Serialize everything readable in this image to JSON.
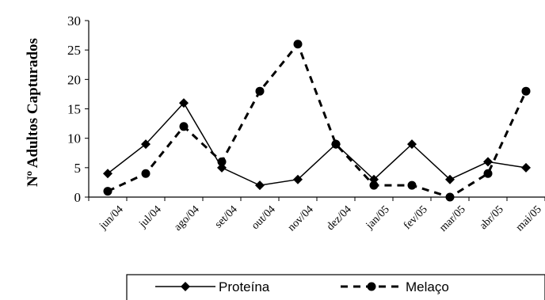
{
  "chart_data": {
    "type": "line",
    "title": "",
    "xlabel": "",
    "ylabel": "Nº Adultos Capturados",
    "ylim": [
      0,
      30
    ],
    "yticks": [
      "0",
      "5",
      "10",
      "15",
      "20",
      "25",
      "30"
    ],
    "categories": [
      "jun/04",
      "jul/04",
      "ago/04",
      "set/04",
      "out/04",
      "nov/04",
      "dez/04",
      "jan/05",
      "fev/05",
      "mar/05",
      "abr/05",
      "mai/05"
    ],
    "series": [
      {
        "name": "Proteína",
        "line_style": "solid",
        "marker": "diamond",
        "color": "#000000",
        "values": [
          4,
          9,
          16,
          5,
          2,
          3,
          9,
          3,
          9,
          3,
          6,
          5
        ]
      },
      {
        "name": "Melaço",
        "line_style": "dashed",
        "marker": "circle",
        "color": "#000000",
        "values": [
          1,
          4,
          12,
          6,
          18,
          26,
          9,
          2,
          2,
          0,
          4,
          18
        ]
      }
    ],
    "legend": "bottom",
    "grid": false
  }
}
